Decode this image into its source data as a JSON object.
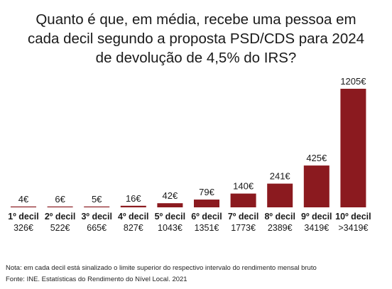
{
  "title_lines": [
    "Quanto é que, em média, recebe uma pessoa em",
    "cada decil segundo a proposta PSD/CDS para 2024",
    "de devolução de 4,5% do IRS?"
  ],
  "bar_color": "#8b1a1f",
  "chart_data": {
    "type": "bar",
    "categories": [
      "1º decil",
      "2º decil",
      "3º decil",
      "4º decil",
      "5º decil",
      "6º decil",
      "7º decil",
      "8º decil",
      "9º decil",
      "10º decil"
    ],
    "sublabels": [
      "326€",
      "522€",
      "665€",
      "827€",
      "1043€",
      "1351€",
      "1773€",
      "2389€",
      "3419€",
      ">3419€"
    ],
    "values": [
      4,
      6,
      5,
      16,
      42,
      79,
      140,
      241,
      425,
      1205
    ],
    "value_labels": [
      "4€",
      "6€",
      "5€",
      "16€",
      "42€",
      "79€",
      "140€",
      "241€",
      "425€",
      "1205€"
    ],
    "ylim": [
      0,
      1205
    ]
  },
  "notes": [
    "Nota: em cada decil está sinalizado o limite superior do respectivo intervalo do rendimento mensal bruto",
    "Fonte: INE. Estatísticas do  Rendimento do Nível Local. 2021"
  ]
}
